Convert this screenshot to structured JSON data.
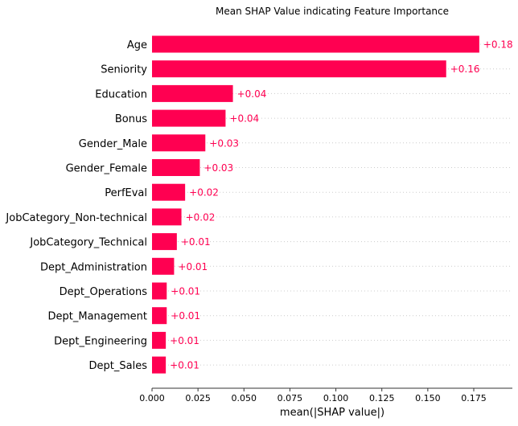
{
  "chart_data": {
    "type": "bar",
    "orientation": "horizontal",
    "title": "Mean SHAP Value indicating Feature Importance",
    "xlabel": "mean(|SHAP value|)",
    "ylabel": "",
    "xlim": [
      0,
      0.196
    ],
    "xticks": [
      "0.000",
      "0.025",
      "0.050",
      "0.075",
      "0.100",
      "0.125",
      "0.150",
      "0.175"
    ],
    "xtick_values": [
      0.0,
      0.025,
      0.05,
      0.075,
      0.1,
      0.125,
      0.15,
      0.175
    ],
    "grid": "dotted horizontal row guides",
    "bar_color": "#ff0051",
    "categories": [
      "Age",
      "Seniority",
      "Education",
      "Bonus",
      "Gender_Male",
      "Gender_Female",
      "PerfEval",
      "JobCategory_Non-technical",
      "JobCategory_Technical",
      "Dept_Administration",
      "Dept_Operations",
      "Dept_Management",
      "Dept_Engineering",
      "Dept_Sales"
    ],
    "values": [
      0.178,
      0.16,
      0.044,
      0.04,
      0.029,
      0.026,
      0.018,
      0.016,
      0.0135,
      0.012,
      0.008,
      0.008,
      0.0075,
      0.0075
    ],
    "value_labels": [
      "+0.18",
      "+0.16",
      "+0.04",
      "+0.04",
      "+0.03",
      "+0.03",
      "+0.02",
      "+0.02",
      "+0.01",
      "+0.01",
      "+0.01",
      "+0.01",
      "+0.01",
      "+0.01"
    ]
  }
}
